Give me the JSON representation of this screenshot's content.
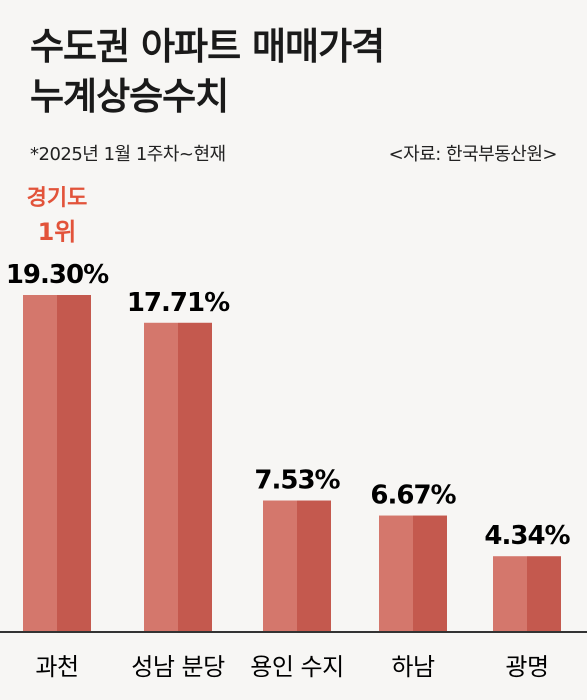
{
  "title_line1": "수도권 아파트 매매가격",
  "title_line2": "누계상승수치",
  "note_left": "*2025년 1월 1주차~현재",
  "note_right": "<자료: 한국부동산원>",
  "highlight": {
    "line1": "경기도",
    "line2": "1위"
  },
  "colors": {
    "bar_light": "#d4776c",
    "bar_dark": "#c4594e",
    "highlight": "#e2533a",
    "axis": "#333333"
  },
  "chart_data": {
    "type": "bar",
    "categories": [
      "과천",
      "성남 분당",
      "용인 수지",
      "하남",
      "광명"
    ],
    "values": [
      19.3,
      17.71,
      7.53,
      6.67,
      4.34
    ],
    "value_labels": [
      "19.30%",
      "17.71%",
      "7.53%",
      "6.67%",
      "4.34%"
    ],
    "title": "수도권 아파트 매매가격 누계상승수치",
    "xlabel": "",
    "ylabel": "",
    "unit": "%",
    "ylim": [
      0,
      19.3
    ]
  }
}
